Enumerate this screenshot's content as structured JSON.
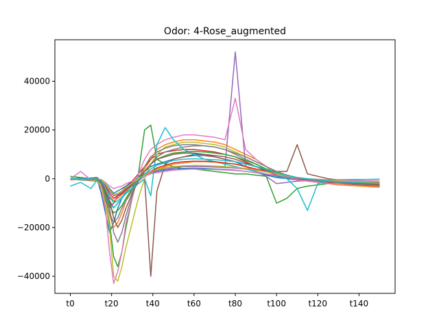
{
  "chart_data": {
    "type": "line",
    "title": "Odor: 4-Rose_augmented",
    "xlabel": "",
    "ylabel": "",
    "xlim": [
      -7.5,
      157.5
    ],
    "ylim": [
      -47000,
      57000
    ],
    "x_tick_values": [
      0,
      20,
      40,
      60,
      80,
      100,
      120,
      140
    ],
    "x_tick_labels": [
      "t0",
      "t20",
      "t40",
      "t60",
      "t80",
      "t100",
      "t120",
      "t140"
    ],
    "y_tick_values": [
      -40000,
      -20000,
      0,
      20000,
      40000
    ],
    "y_tick_labels": [
      "−40000",
      "−20000",
      "0",
      "20000",
      "40000"
    ],
    "grid": false,
    "legend": "none",
    "series_count_estimate": 150,
    "x": [
      0,
      5,
      10,
      13,
      15,
      17,
      19,
      21,
      23,
      25,
      27,
      30,
      33,
      36,
      39,
      42,
      46,
      50,
      55,
      60,
      65,
      70,
      75,
      80,
      85,
      90,
      95,
      100,
      105,
      110,
      115,
      120,
      125,
      130,
      140,
      150
    ],
    "series": [
      {
        "color": "#1f77b4",
        "values": [
          200,
          0,
          -300,
          -200,
          -6000,
          -14000,
          -22000,
          -18000,
          -12000,
          -8000,
          -5000,
          -2000,
          1000,
          3000,
          5000,
          6000,
          7000,
          8000,
          9000,
          10000,
          10000,
          9000,
          8000,
          7000,
          5000,
          3000,
          1500,
          500,
          0,
          -500,
          -500,
          -800,
          -1000,
          -1200,
          -1500,
          -1500
        ]
      },
      {
        "color": "#ff7f0e",
        "values": [
          -500,
          -200,
          0,
          300,
          -2000,
          -8000,
          -15000,
          -20000,
          -18000,
          -14000,
          -9000,
          -4000,
          0,
          4000,
          8000,
          12000,
          14000,
          15000,
          16000,
          16000,
          15500,
          15000,
          14000,
          12000,
          10000,
          8000,
          5000,
          2500,
          1000,
          0,
          -1000,
          -1500,
          -2000,
          -2500,
          -3000,
          -3500
        ]
      },
      {
        "color": "#2ca02c",
        "values": [
          1000,
          500,
          0,
          -500,
          -3000,
          -10000,
          -18000,
          -32000,
          -36000,
          -30000,
          -20000,
          -8000,
          2000,
          20000,
          22000,
          8000,
          6000,
          5000,
          4000,
          4000,
          3500,
          3000,
          2500,
          2000,
          2000,
          1500,
          1000,
          -10000,
          -8000,
          -4000,
          -3000,
          -2500,
          -2000,
          -1500,
          -1000,
          -1000
        ]
      },
      {
        "color": "#d62728",
        "values": [
          0,
          -300,
          -500,
          -1000,
          -4000,
          -9000,
          -12000,
          -10000,
          -7000,
          -5000,
          -3000,
          -1000,
          2000,
          5000,
          8000,
          10000,
          11000,
          11500,
          12000,
          12000,
          11500,
          11000,
          10000,
          9000,
          7000,
          5000,
          3000,
          1500,
          500,
          0,
          -500,
          -1000,
          -1500,
          -2000,
          -2500,
          -3000
        ]
      },
      {
        "color": "#9467bd",
        "values": [
          0,
          0,
          -200,
          -500,
          -2000,
          -5000,
          -8000,
          -9000,
          -8000,
          -6000,
          -4000,
          -2000,
          0,
          2000,
          3000,
          4000,
          4500,
          5000,
          5000,
          5000,
          5000,
          5000,
          5000,
          52000,
          5000,
          3000,
          1000,
          -2000,
          -1500,
          -1000,
          -800,
          -600,
          -500,
          -400,
          -300,
          -200
        ]
      },
      {
        "color": "#8c564b",
        "values": [
          0,
          200,
          300,
          500,
          -1000,
          -5000,
          -9000,
          -12000,
          -10000,
          -8000,
          -6000,
          -4000,
          -2000,
          0,
          -40000,
          -5000,
          6000,
          8000,
          9000,
          9500,
          9500,
          9000,
          8000,
          7000,
          6000,
          5000,
          4000,
          3000,
          3000,
          14000,
          2000,
          1000,
          0,
          -500,
          -1000,
          -1500
        ]
      },
      {
        "color": "#e377c2",
        "values": [
          0,
          3000,
          -500,
          -1000,
          -4000,
          -12000,
          -30000,
          -43000,
          -38000,
          -30000,
          -18000,
          -8000,
          2000,
          8000,
          12000,
          14000,
          16000,
          17000,
          18000,
          18000,
          17500,
          17000,
          16000,
          33000,
          12000,
          8000,
          5000,
          2000,
          500,
          -500,
          -1000,
          -1500,
          -2000,
          -2000,
          -2000,
          -2000
        ]
      },
      {
        "color": "#7f7f7f",
        "values": [
          0,
          -500,
          -800,
          -1000,
          -3000,
          -8000,
          -14000,
          -18000,
          -16000,
          -12000,
          -9000,
          -5000,
          -1000,
          3000,
          6000,
          9000,
          11000,
          12000,
          13000,
          13500,
          13500,
          13000,
          12000,
          10000,
          8000,
          6000,
          4000,
          2500,
          1000,
          200,
          -300,
          -700,
          -1000,
          -1300,
          -1800,
          -2000
        ]
      },
      {
        "color": "#bcbd22",
        "values": [
          0,
          -200,
          -400,
          -800,
          -3000,
          -10000,
          -20000,
          -40000,
          -42000,
          -36000,
          -28000,
          -18000,
          -8000,
          0,
          6000,
          10000,
          13000,
          14000,
          15000,
          15000,
          14500,
          14000,
          13000,
          11000,
          9000,
          7000,
          5000,
          3000,
          1500,
          500,
          -300,
          -800,
          -1200,
          -1600,
          -2200,
          -2800
        ]
      },
      {
        "color": "#17becf",
        "values": [
          -3000,
          -1500,
          -4000,
          -500,
          -2000,
          -6000,
          -10000,
          -12000,
          -10000,
          -8000,
          -6000,
          -4000,
          -2000,
          0,
          -7000,
          14000,
          21000,
          16000,
          12000,
          10000,
          8000,
          7000,
          6000,
          5000,
          4000,
          3000,
          2000,
          1000,
          0,
          -4000,
          -13000,
          -2000,
          -1000,
          -500,
          -300,
          -200
        ]
      },
      {
        "color": "#1f77b4",
        "values": [
          0,
          0,
          0,
          0,
          -500,
          -2000,
          -4000,
          -6000,
          -5000,
          -4000,
          -3000,
          -1500,
          0,
          1500,
          2500,
          3000,
          3500,
          4000,
          4200,
          4300,
          4200,
          4000,
          3800,
          3500,
          3000,
          2500,
          1800,
          1200,
          600,
          200,
          -100,
          -300,
          -500,
          -700,
          -900,
          -1000
        ]
      },
      {
        "color": "#ff7f0e",
        "values": [
          0,
          -100,
          -200,
          -300,
          -1000,
          -4000,
          -7000,
          -9000,
          -8000,
          -6500,
          -5000,
          -3000,
          -1000,
          1000,
          2500,
          4000,
          5000,
          6000,
          6500,
          7000,
          7000,
          6800,
          6500,
          6000,
          5000,
          4000,
          3000,
          2000,
          1000,
          400,
          0,
          -400,
          -800,
          -1200,
          -1800,
          -2200
        ]
      },
      {
        "color": "#2ca02c",
        "values": [
          0,
          0,
          -100,
          -300,
          -1500,
          -6000,
          -11000,
          -14000,
          -13000,
          -11000,
          -8000,
          -4000,
          0,
          3000,
          6000,
          8000,
          9500,
          10500,
          11000,
          11200,
          11000,
          10500,
          10000,
          9000,
          7500,
          6000,
          4000,
          2500,
          1200,
          400,
          -200,
          -700,
          -1100,
          -1500,
          -2000,
          -2500
        ]
      },
      {
        "color": "#d62728",
        "values": [
          0,
          0,
          0,
          0,
          -800,
          -3000,
          -6000,
          -8000,
          -7000,
          -6000,
          -4500,
          -2500,
          -500,
          1500,
          3000,
          4500,
          5500,
          6500,
          7000,
          7200,
          7200,
          7000,
          6500,
          6000,
          5000,
          4000,
          3000,
          2000,
          1000,
          300,
          -100,
          -400,
          -700,
          -1000,
          -1400,
          -1800
        ]
      },
      {
        "color": "#9467bd",
        "values": [
          0,
          0,
          0,
          -100,
          -600,
          -2500,
          -5000,
          -7000,
          -6500,
          -5500,
          -4000,
          -2000,
          0,
          1500,
          2500,
          3500,
          4000,
          4500,
          5000,
          5000,
          5000,
          4800,
          4600,
          4400,
          4000,
          3500,
          2800,
          2000,
          1200,
          500,
          0,
          -300,
          -600,
          -900,
          -1200,
          -1500
        ]
      },
      {
        "color": "#8c564b",
        "values": [
          0,
          0,
          0,
          0,
          -1200,
          -5000,
          -9000,
          -16000,
          -20000,
          -17000,
          -12000,
          -6000,
          -1000,
          3000,
          6000,
          8000,
          9000,
          10000,
          10500,
          10500,
          10000,
          9500,
          9000,
          8000,
          6500,
          5000,
          3500,
          2000,
          900,
          200,
          -300,
          -700,
          -1100,
          -1500,
          -2000,
          -2500
        ]
      },
      {
        "color": "#e377c2",
        "values": [
          0,
          0,
          0,
          0,
          -300,
          -1500,
          -3000,
          -4000,
          -3500,
          -3000,
          -2000,
          -1000,
          0,
          1000,
          2000,
          2500,
          3000,
          3500,
          3800,
          4000,
          3900,
          3800,
          3600,
          3400,
          3000,
          2600,
          2000,
          1400,
          800,
          300,
          0,
          -200,
          -400,
          -600,
          -800,
          -1000
        ]
      },
      {
        "color": "#7f7f7f",
        "values": [
          0,
          0,
          -200,
          -400,
          -2000,
          -7000,
          -12000,
          -22000,
          -26000,
          -22000,
          -15000,
          -7000,
          0,
          5000,
          9000,
          11000,
          12500,
          13500,
          14000,
          14000,
          13500,
          13000,
          12000,
          10500,
          9000,
          7000,
          5000,
          3000,
          1500,
          500,
          -300,
          -800,
          -1200,
          -1700,
          -2300,
          -2900
        ]
      },
      {
        "color": "#bcbd22",
        "values": [
          0,
          0,
          0,
          0,
          -500,
          -2000,
          -4500,
          -6500,
          -6000,
          -5000,
          -3500,
          -1800,
          0,
          1500,
          2800,
          3800,
          4500,
          5000,
          5300,
          5500,
          5400,
          5200,
          5000,
          4700,
          4200,
          3600,
          2800,
          2000,
          1100,
          400,
          0,
          -300,
          -600,
          -900,
          -1200,
          -1400
        ]
      },
      {
        "color": "#17becf",
        "values": [
          0,
          0,
          0,
          -100,
          -800,
          -3500,
          -7000,
          -10000,
          -9000,
          -7500,
          -5500,
          -3000,
          -500,
          2000,
          4000,
          5500,
          6500,
          7500,
          8000,
          8200,
          8000,
          7800,
          7500,
          7000,
          6000,
          5000,
          3800,
          2500,
          1300,
          500,
          0,
          -400,
          -800,
          -1200,
          -1600,
          -2000
        ]
      }
    ]
  }
}
